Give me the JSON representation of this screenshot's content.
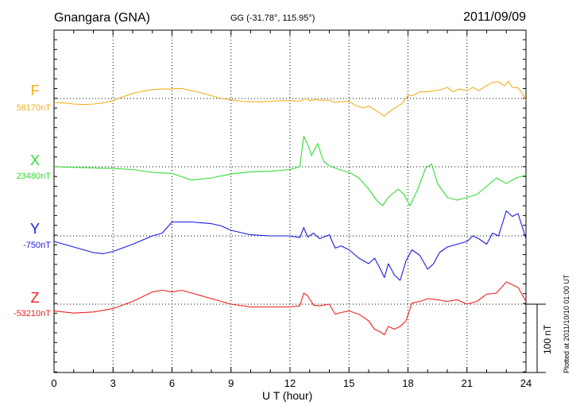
{
  "header": {
    "station": "Gnangara (GNA)",
    "coords": "GG (-31.78°, 115.95°)",
    "date": "2011/09/09"
  },
  "footer": {
    "plotted": "Plotted at 2011/10/10 01:00 UT",
    "scale": "100 nT"
  },
  "chart_data": {
    "type": "line",
    "xlabel": "U T (hour)",
    "xlim": [
      0,
      24
    ],
    "xticks": [
      "0",
      "3",
      "6",
      "9",
      "12",
      "15",
      "18",
      "21",
      "24"
    ],
    "grid": true,
    "scale_bar_nT": 100,
    "series": [
      {
        "name": "F",
        "baseline_label": "58170nT",
        "baseline": 58170,
        "color": "#f0b020",
        "x": [
          0,
          0.5,
          1,
          1.5,
          2,
          2.5,
          3,
          3.5,
          4,
          4.5,
          5,
          5.5,
          6,
          6.2,
          6.5,
          7,
          7.5,
          8,
          8.5,
          9,
          9.5,
          10,
          10.5,
          11,
          11.5,
          12,
          12.5,
          12.8,
          13,
          13.3,
          13.5,
          14,
          14.3,
          14.5,
          15,
          15.3,
          15.7,
          16,
          16.3,
          16.6,
          16.8,
          17,
          17.3,
          17.7,
          18,
          18.3,
          18.6,
          19,
          19.3,
          19.6,
          20,
          20.3,
          20.6,
          21,
          21.3,
          21.6,
          22,
          22.3,
          22.6,
          22.9,
          23.1,
          23.3,
          23.6,
          23.9,
          24
        ],
        "values": [
          -7,
          -8,
          -10,
          -11,
          -10,
          -8,
          -4,
          3,
          9,
          13,
          16,
          17,
          17,
          18,
          18,
          14,
          10,
          5,
          0,
          -2,
          -5,
          -6,
          -6,
          -5,
          -4,
          -4,
          -5,
          0,
          -4,
          -2,
          -3,
          -3,
          -7,
          -6,
          -5,
          -12,
          -17,
          -14,
          -20,
          -27,
          -32,
          -25,
          -18,
          -9,
          5,
          6,
          12,
          12,
          14,
          15,
          20,
          12,
          17,
          14,
          20,
          14,
          23,
          29,
          30,
          23,
          31,
          20,
          19,
          5,
          -4
        ]
      },
      {
        "name": "X",
        "baseline_label": "23480nT",
        "baseline": 23480,
        "color": "#33dd33",
        "x": [
          0,
          1,
          2,
          3,
          4,
          5,
          6,
          6.5,
          7,
          8,
          9,
          10,
          11,
          12,
          12.5,
          12.7,
          12.9,
          13.1,
          13.4,
          13.7,
          14,
          14.5,
          15,
          15.5,
          16,
          16.4,
          16.7,
          17,
          17.5,
          17.8,
          18.1,
          18.5,
          18.9,
          19.2,
          19.5,
          19.8,
          20,
          20.5,
          21,
          21.5,
          22,
          22.5,
          23,
          23.5,
          24
        ],
        "values": [
          0,
          -1,
          -2,
          -3,
          -5,
          -10,
          -12,
          -18,
          -24,
          -20,
          -13,
          -9,
          -8,
          -5,
          0,
          55,
          40,
          20,
          42,
          10,
          2,
          -5,
          -10,
          -20,
          -40,
          -60,
          -70,
          -55,
          -40,
          -50,
          -70,
          -40,
          -2,
          5,
          -30,
          -45,
          -55,
          -60,
          -55,
          -50,
          -35,
          -20,
          -30,
          -20,
          -15
        ]
      },
      {
        "name": "Y",
        "baseline_label": "-750nT",
        "baseline": -750,
        "color": "#1a1ae0",
        "x": [
          0,
          1,
          2,
          2.5,
          3,
          4,
          5,
          5.5,
          6,
          6.2,
          7,
          8,
          8.5,
          9,
          10,
          11,
          12,
          12.5,
          12.7,
          12.9,
          13.2,
          13.5,
          14,
          14.3,
          14.6,
          15,
          15.5,
          16,
          16.3,
          16.6,
          16.8,
          17,
          17.3,
          17.6,
          17.9,
          18.2,
          18.6,
          19,
          19.3,
          19.6,
          20,
          20.5,
          21,
          21.3,
          21.6,
          22,
          22.3,
          22.6,
          23,
          23.3,
          23.6,
          24
        ],
        "values": [
          -10,
          -20,
          -30,
          -32,
          -28,
          -15,
          0,
          5,
          25,
          25,
          25,
          22,
          18,
          10,
          2,
          0,
          0,
          -3,
          15,
          -2,
          5,
          -5,
          2,
          -22,
          -18,
          -25,
          -40,
          -50,
          -40,
          -60,
          -75,
          -50,
          -70,
          -80,
          -45,
          -25,
          -35,
          -60,
          -50,
          -30,
          -20,
          -15,
          -10,
          0,
          -5,
          -15,
          5,
          0,
          45,
          35,
          40,
          -5
        ]
      },
      {
        "name": "Z",
        "baseline_label": "-53210nT",
        "baseline": -53210,
        "color": "#ee2222",
        "x": [
          0,
          1,
          2,
          3,
          4,
          5,
          5.5,
          6,
          6.5,
          7,
          8,
          9,
          10,
          11,
          12,
          12.5,
          12.7,
          12.9,
          13.2,
          13.5,
          14,
          14.3,
          14.6,
          15,
          15.5,
          16,
          16.3,
          16.6,
          16.8,
          17,
          17.3,
          17.6,
          17.9,
          18.2,
          18.6,
          19,
          19.5,
          20,
          20.5,
          21,
          21.5,
          22,
          22.5,
          23,
          23.3,
          23.6,
          24
        ],
        "values": [
          -12,
          -16,
          -14,
          -8,
          5,
          22,
          25,
          22,
          25,
          20,
          10,
          0,
          -5,
          -5,
          -5,
          -3,
          20,
          15,
          -2,
          -3,
          0,
          -18,
          -15,
          -12,
          -18,
          -30,
          -45,
          -50,
          -55,
          -40,
          -45,
          -40,
          -30,
          2,
          5,
          10,
          8,
          5,
          8,
          0,
          5,
          18,
          20,
          40,
          35,
          30,
          5
        ]
      }
    ]
  }
}
